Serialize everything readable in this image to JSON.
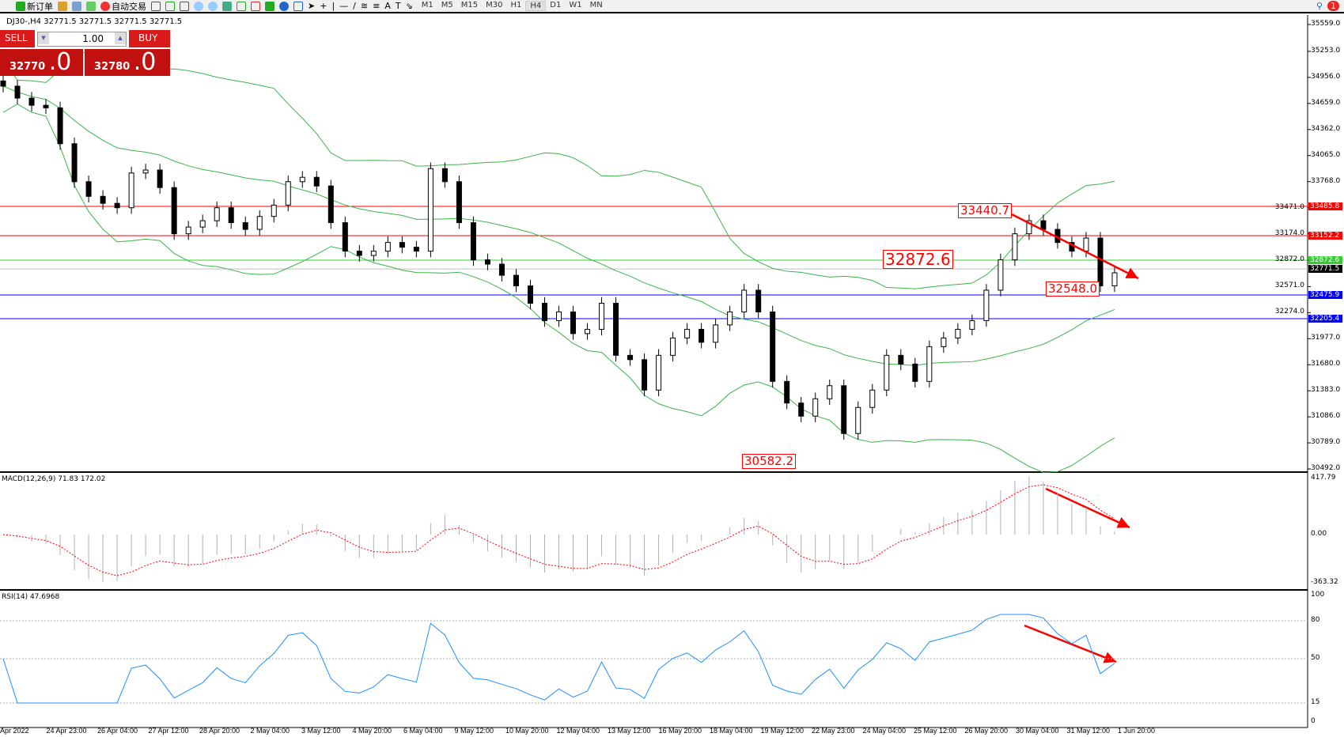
{
  "toolbar": {
    "new_order": "新订单",
    "auto_trading": "自动交易",
    "timeframes": [
      "M1",
      "M5",
      "M15",
      "M30",
      "H1",
      "H4",
      "D1",
      "W1",
      "MN"
    ],
    "active_timeframe": "H4",
    "notification_count": "1"
  },
  "symbol_header": "DJ30-,H4  32771.5 32771.5 32771.5 32771.5",
  "trade_panel": {
    "sell_label": "SELL",
    "buy_label": "BUY",
    "lot": "1.00",
    "bid_main": "32770",
    "bid_frac": ".0",
    "ask_main": "32780",
    "ask_frac": ".0"
  },
  "colors": {
    "bull_bear": "#000000",
    "bands": "#3cb44b",
    "resistance": "#ff0000",
    "support": "#0000ff",
    "green_level": "#33cc33",
    "macd_signal": "#ff0000",
    "rsi": "#1e90ff",
    "arrow": "#ff0000"
  },
  "chart_data": {
    "type": "candlestick",
    "price_ticks": [
      "35559.0",
      "35253.0",
      "34956.0",
      "34659.0",
      "34362.0",
      "34065.0",
      "33768.0",
      "33471.0",
      "33174.0",
      "32872.0",
      "32571.0",
      "32274.0",
      "31977.0",
      "31680.0",
      "31383.0",
      "31086.0",
      "30789.0",
      "30492.0"
    ],
    "ylim": [
      30492,
      35559
    ],
    "closes": [
      34856,
      34720,
      34638,
      34609,
      34200,
      33767,
      33600,
      33520,
      33470,
      33866,
      33900,
      33700,
      33173,
      33250,
      33322,
      33470,
      33300,
      33223,
      33371,
      33500,
      33767,
      33817,
      33718,
      33300,
      32975,
      32926,
      32975,
      33074,
      33020,
      32975,
      33916,
      33767,
      33300,
      32876,
      32827,
      32700,
      32579,
      32381,
      32183,
      32282,
      32035,
      32084,
      32381,
      31787,
      31738,
      31391,
      31787,
      31985,
      32084,
      31936,
      32134,
      32282,
      32530,
      32282,
      31490,
      31243,
      31094,
      31292,
      31441,
      30896,
      31193,
      31391,
      31787,
      31688,
      31490,
      31886,
      31985,
      32084,
      32183,
      32530,
      32876,
      33173,
      33322,
      33223,
      33074,
      32975,
      33124,
      32579,
      32728
    ],
    "levels": [
      {
        "price": "33485.8",
        "color": "#ff0000"
      },
      {
        "price": "33152.2",
        "color": "#ff0000"
      },
      {
        "price": "32872.6",
        "color": "#33cc33"
      },
      {
        "price": "32771.5",
        "color": "#000000",
        "line": "#c0c0c0"
      },
      {
        "price": "32475.9",
        "color": "#0000ff"
      },
      {
        "price": "32205.4",
        "color": "#0000ff"
      }
    ],
    "annotations": [
      "33440.7",
      "32872.6",
      "32548.0",
      "30582.2"
    ],
    "indicators": {
      "bands": "Bollinger Bands (20)",
      "macd_label": "MACD(12,26,9) 71.83 172.02",
      "macd_ticks": [
        "417.79",
        "0.00",
        "-363.32"
      ],
      "rsi_label": "RSI(14) 47.6968",
      "rsi_ticks": [
        "100",
        "80",
        "50",
        "15",
        "0"
      ]
    },
    "time_labels": [
      "Apr 2022",
      "24 Apr 23:00",
      "26 Apr 04:00",
      "27 Apr 12:00",
      "28 Apr 20:00",
      "2 May 04:00",
      "3 May 12:00",
      "4 May 20:00",
      "6 May 04:00",
      "9 May 12:00",
      "10 May 20:00",
      "12 May 04:00",
      "13 May 12:00",
      "16 May 20:00",
      "18 May 04:00",
      "19 May 12:00",
      "22 May 23:00",
      "24 May 04:00",
      "25 May 12:00",
      "26 May 20:00",
      "30 May 04:00",
      "31 May 12:00",
      "1 Jun 20:00"
    ]
  }
}
